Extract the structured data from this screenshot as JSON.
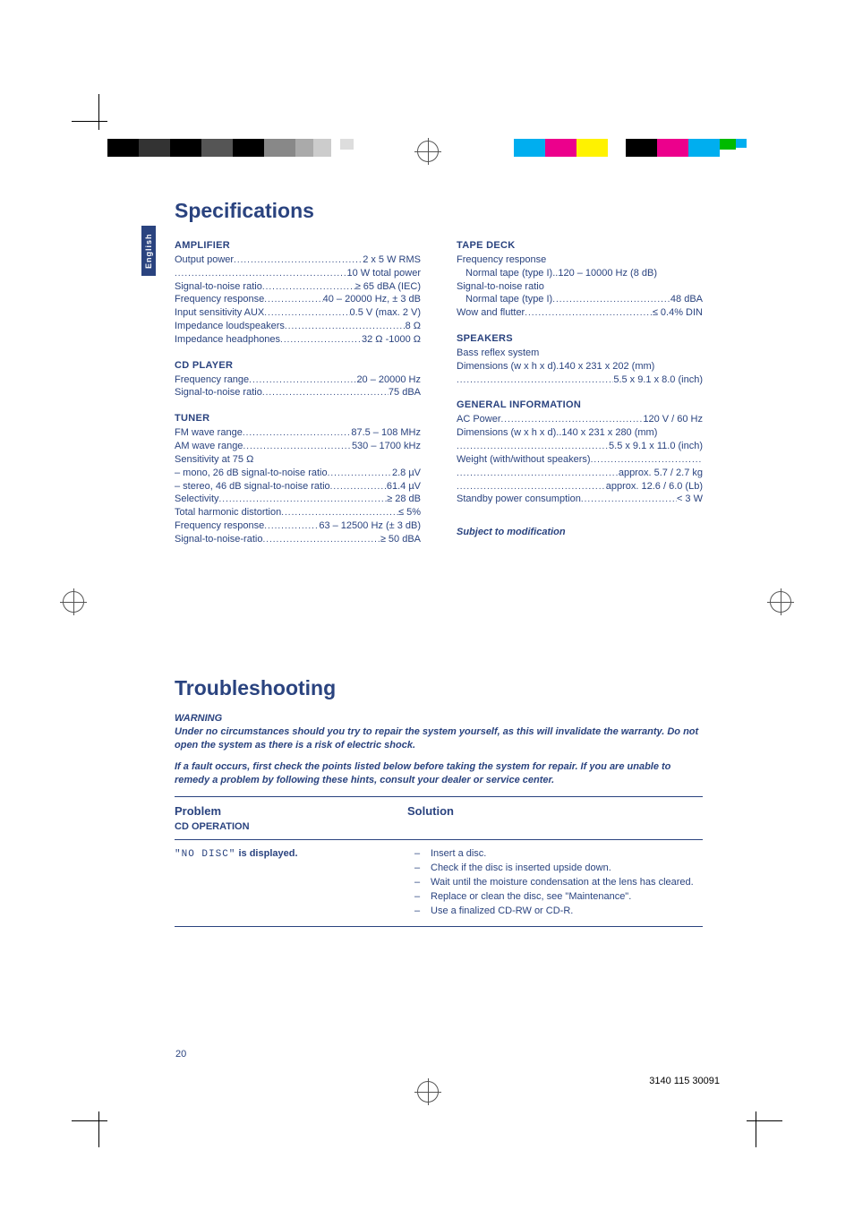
{
  "language_tab": "English",
  "heading_specs": "Specifications",
  "heading_trouble": "Troubleshooting",
  "left_col": {
    "amplifier": {
      "title": "AMPLIFIER",
      "rows": [
        {
          "label": "Output power",
          "value": "2 x 5 W RMS"
        },
        {
          "label": "",
          "value": "10 W total power"
        },
        {
          "label": "Signal-to-noise ratio",
          "value": "≥ 65 dBA (IEC)"
        },
        {
          "label": "Frequency response",
          "value": "40 – 20000 Hz, ± 3 dB"
        },
        {
          "label": "Input sensitivity AUX",
          "value": "0.5 V (max. 2 V)"
        },
        {
          "label": "Impedance loudspeakers",
          "value": "8 Ω"
        },
        {
          "label": "Impedance headphones",
          "value": "32 Ω -1000 Ω"
        }
      ]
    },
    "cd": {
      "title": "CD PLAYER",
      "rows": [
        {
          "label": "Frequency range",
          "value": "20 – 20000 Hz"
        },
        {
          "label": "Signal-to-noise ratio",
          "value": "75 dBA"
        }
      ]
    },
    "tuner": {
      "title": "TUNER",
      "rows": [
        {
          "label": "FM wave range",
          "value": "87.5 – 108 MHz"
        },
        {
          "label": "AM wave range",
          "value": "530 – 1700 kHz"
        }
      ],
      "sens_line": "Sensitivity at 75 Ω",
      "sens_rows": [
        {
          "label": "– mono, 26 dB signal-to-noise ratio",
          "value": "2.8 µV"
        },
        {
          "label": "– stereo, 46 dB signal-to-noise ratio",
          "value": "61.4 µV"
        }
      ],
      "more": [
        {
          "label": "Selectivity",
          "value": "≥ 28 dB"
        },
        {
          "label": "Total harmonic distortion",
          "value": "≤ 5%"
        },
        {
          "label": "Frequency response",
          "value": "63 – 12500 Hz (± 3 dB)"
        },
        {
          "label": "Signal-to-noise-ratio",
          "value": "≥ 50 dBA"
        }
      ]
    }
  },
  "right_col": {
    "tape": {
      "title": "TAPE DECK",
      "freq_line": "Frequency response",
      "freq_rows": [
        {
          "label": "Normal tape (type I)",
          "value": "120 – 10000 Hz (8 dB)"
        }
      ],
      "snr_line": "Signal-to-noise ratio",
      "snr_rows": [
        {
          "label": "Normal tape (type I)",
          "value": "48 dBA"
        }
      ],
      "more": [
        {
          "label": "Wow and flutter",
          "value": "≤ 0.4% DIN"
        }
      ]
    },
    "speakers": {
      "title": "SPEAKERS",
      "line": "Bass reflex system",
      "rows": [
        {
          "label": "Dimensions (w x h x d)",
          "value": "140 x 231 x 202 (mm)"
        },
        {
          "label": "",
          "value": "5.5 x 9.1 x 8.0 (inch)"
        }
      ]
    },
    "general": {
      "title": "GENERAL INFORMATION",
      "rows": [
        {
          "label": "AC Power",
          "value": "120 V / 60 Hz"
        },
        {
          "label": "Dimensions (w x h x d)",
          "value": "140 x 231 x 280 (mm)"
        },
        {
          "label": "",
          "value": "5.5 x 9.1 x 11.0 (inch)"
        },
        {
          "label": "Weight (with/without speakers)",
          "value": ""
        },
        {
          "label": "",
          "value": "approx. 5.7 / 2.7 kg"
        },
        {
          "label": "",
          "value": "approx. 12.6 / 6.0 (Lb)"
        },
        {
          "label": "Standby power consumption",
          "value": "< 3 W"
        }
      ]
    },
    "note": "Subject to modification"
  },
  "trouble": {
    "warning_label": "WARNING",
    "warning_body1": "Under no circumstances should you try to repair the system yourself, as this will invalidate the warranty.  Do not open the system as there is a risk of electric shock.",
    "warning_body2": "If a fault occurs, first check the points listed below before taking the system for repair. If you are unable to remedy a problem by following these hints, consult your dealer or service center.",
    "problem_head": "Problem",
    "solution_head": "Solution",
    "cd_op": "CD OPERATION",
    "row1": {
      "disc_code": "\"NO DISC\"",
      "disc_suffix": " is displayed.",
      "solutions": [
        "Insert a disc.",
        "Check if the disc is inserted upside down.",
        "Wait until the moisture condensation at the lens has cleared.",
        "Replace or clean the disc, see \"Maintenance\".",
        "Use a finalized CD-RW or CD-R."
      ]
    }
  },
  "page_number": "20",
  "footer_code": "3140 115 30091"
}
